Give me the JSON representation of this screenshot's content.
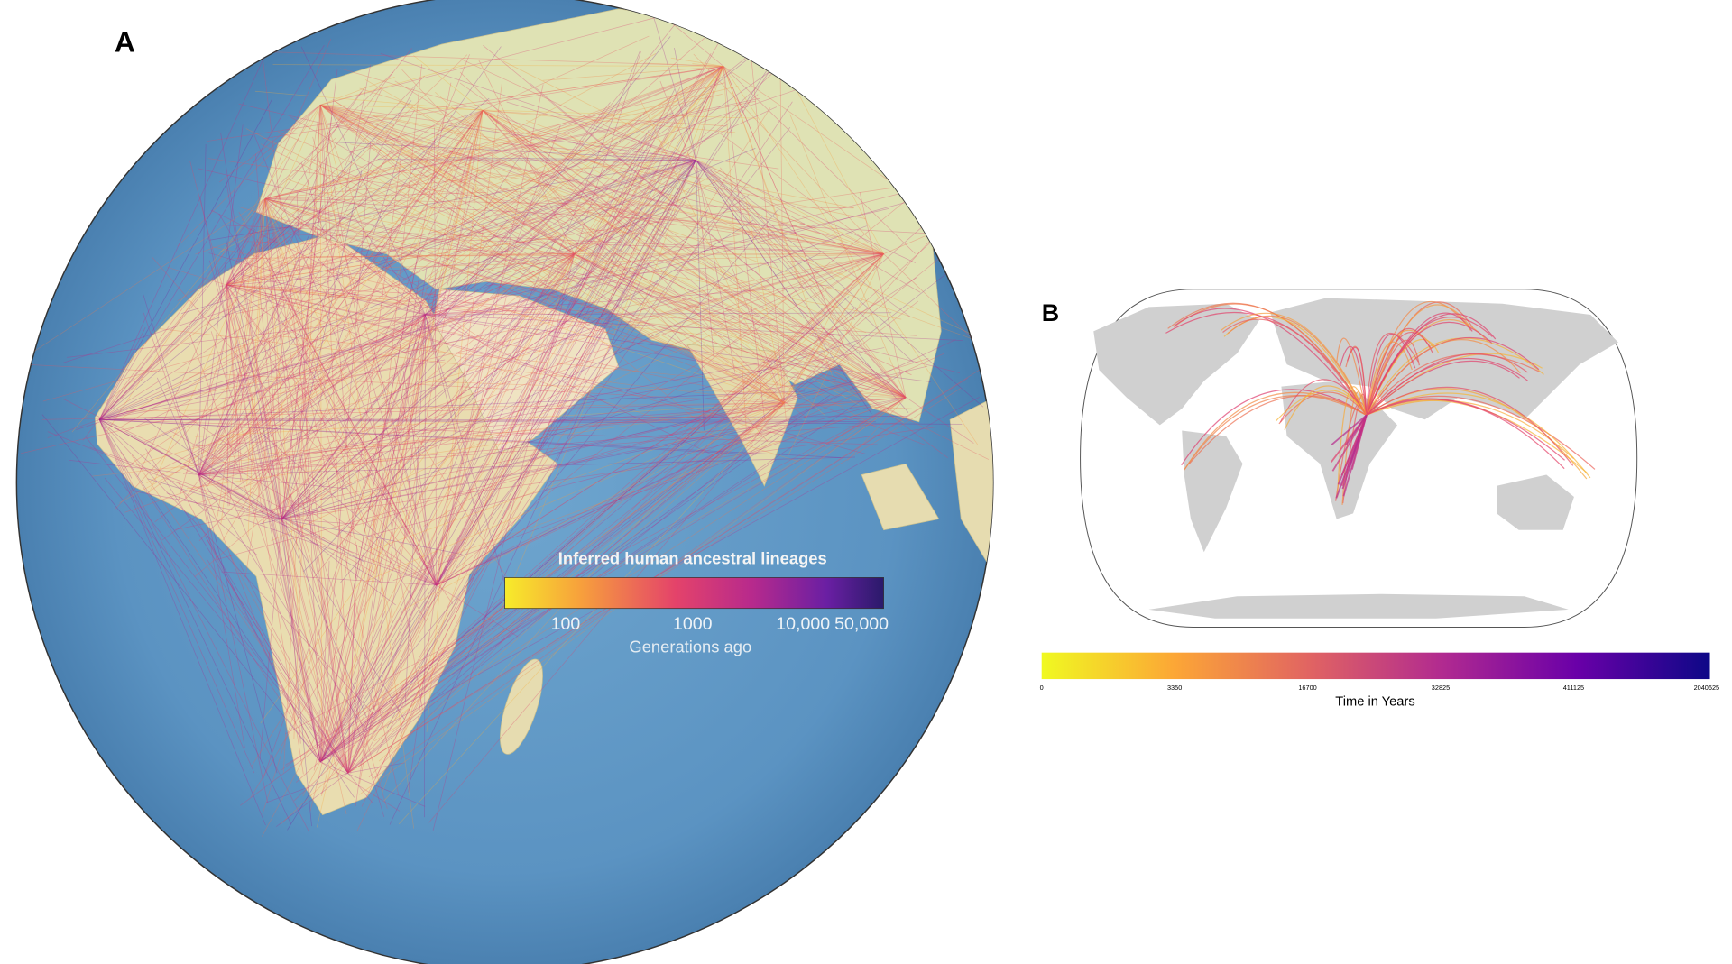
{
  "panel_a": {
    "label": "A",
    "legend": {
      "title": "Inferred human ancestral lineages",
      "ticks": [
        "100",
        "1000",
        "10,000",
        "50,000"
      ],
      "axis_label": "Generations ago"
    }
  },
  "panel_b": {
    "label": "B",
    "colorbar": {
      "ticks": [
        "0",
        "3350",
        "16700",
        "32825",
        "411125",
        "2040625"
      ],
      "axis_label": "Time in Years"
    }
  }
}
